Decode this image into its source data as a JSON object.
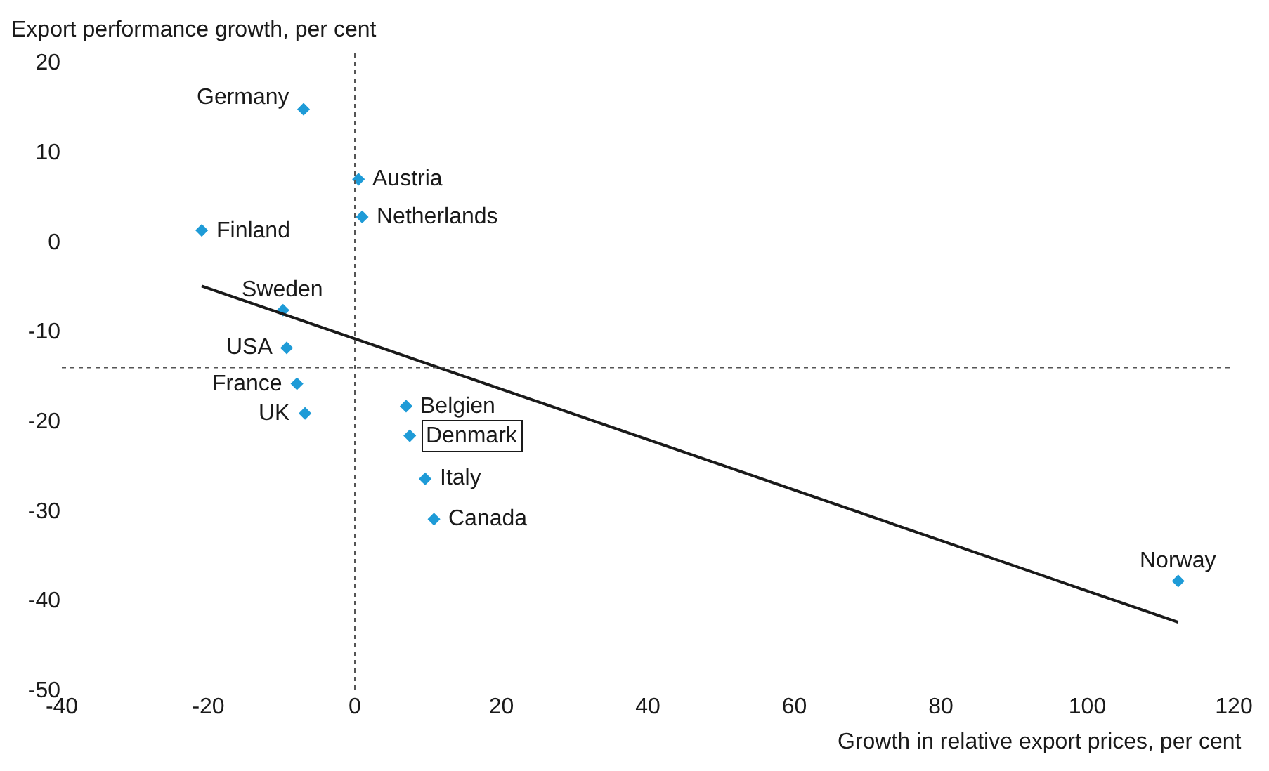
{
  "chart_data": {
    "type": "scatter",
    "xlabel": "Growth in relative export prices, per cent",
    "ylabel": "Export performance growth, per cent",
    "series": [
      {
        "color": "#1e9bd7",
        "marker": "diamond",
        "x": [
          -7.0,
          0.5,
          1.0,
          -20.9,
          -9.8,
          -9.3,
          -7.9,
          -6.8,
          7.0,
          7.5,
          9.6,
          10.8,
          112.4
        ],
        "values": [
          14.7,
          6.9,
          2.7,
          1.2,
          -7.7,
          -11.9,
          -15.9,
          -19.2,
          -18.4,
          -21.7,
          -26.5,
          -31.0,
          -37.9
        ]
      },
      {
        "type": "line",
        "color": "#1a1a1a",
        "marker": "none",
        "line_style": "solid",
        "x": [
          -20.9,
          112.4
        ],
        "values": [
          -5.0,
          -42.5
        ]
      }
    ],
    "annotations": [
      {
        "text": "Germany",
        "x": -7.0,
        "y": 14.7
      },
      {
        "text": "Austria",
        "x": 0.5,
        "y": 6.9
      },
      {
        "text": "Netherlands",
        "x": 1.0,
        "y": 2.7
      },
      {
        "text": "Finland",
        "x": -20.9,
        "y": 1.2
      },
      {
        "text": "Sweden",
        "x": -9.8,
        "y": -7.7
      },
      {
        "text": "USA",
        "x": -9.3,
        "y": -11.9
      },
      {
        "text": "France",
        "x": -7.9,
        "y": -15.9
      },
      {
        "text": "UK",
        "x": -6.8,
        "y": -19.2
      },
      {
        "text": "Belgien",
        "x": 7.0,
        "y": -18.4
      },
      {
        "text": "Denmark",
        "x": 7.5,
        "y": -21.7
      },
      {
        "text": "Italy",
        "x": 9.6,
        "y": -26.5
      },
      {
        "text": "Canada",
        "x": 10.8,
        "y": -31.0
      },
      {
        "text": "Norway",
        "x": 112.4,
        "y": -37.9
      }
    ],
    "ref_lines": [
      {
        "axis": "x",
        "value": 0,
        "color": "#555555",
        "line_style": "dotted"
      },
      {
        "axis": "y",
        "value": -14.1,
        "color": "#555555",
        "line_style": "dotted"
      }
    ],
    "xlim": [
      -40,
      120
    ],
    "xticks": [
      -40,
      -20,
      0,
      20,
      40,
      60,
      80,
      100,
      120
    ],
    "ylim": [
      -50,
      20
    ],
    "yticks": [
      -50,
      -40,
      -30,
      -20,
      -10,
      0,
      10,
      20
    ]
  }
}
